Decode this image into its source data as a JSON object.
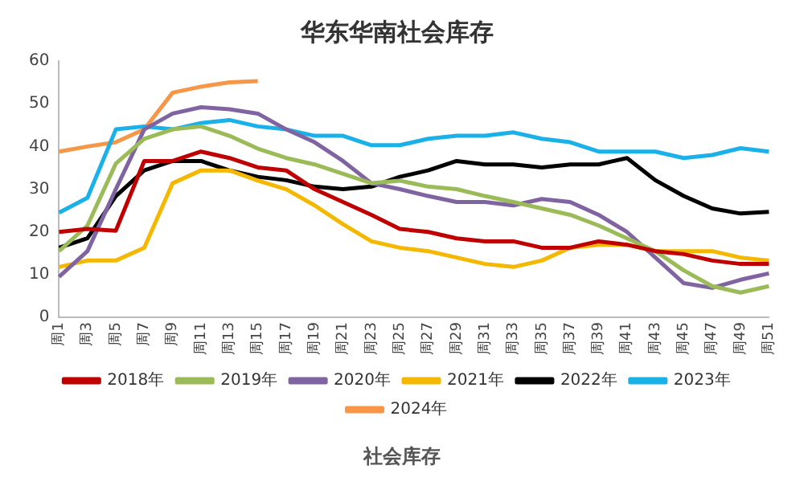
{
  "chart_data": {
    "type": "line",
    "title": "华东华南社会库存",
    "categories": [
      "周1",
      "周3",
      "周5",
      "周7",
      "周9",
      "周11",
      "周13",
      "周15",
      "周17",
      "周19",
      "周21",
      "周23",
      "周25",
      "周27",
      "周29",
      "周31",
      "周33",
      "周35",
      "周37",
      "周39",
      "周41",
      "周43",
      "周45",
      "周47",
      "周49",
      "周51"
    ],
    "series": [
      {
        "name": "2018年",
        "color": "#c00000",
        "values": [
          20,
          20.7,
          20.3,
          36.6,
          36.6,
          38.8,
          37.3,
          35.1,
          34.4,
          30,
          27,
          24,
          20.7,
          20,
          18.5,
          17.8,
          17.8,
          16.3,
          16.3,
          17.8,
          17,
          15.5,
          14.8,
          13.3,
          12.5,
          12.5
        ]
      },
      {
        "name": "2019年",
        "color": "#9bbb59",
        "values": [
          15.5,
          21.5,
          36,
          41.8,
          44,
          44.7,
          42.5,
          39.5,
          37.3,
          35.8,
          33.6,
          31.4,
          32,
          30.6,
          30,
          28.4,
          27,
          25.5,
          24,
          21.5,
          18.5,
          15.5,
          11,
          7.3,
          5.8,
          7.3
        ]
      },
      {
        "name": "2020年",
        "color": "#8064a2",
        "values": [
          9.5,
          15.5,
          30,
          44,
          47.7,
          49.2,
          48.7,
          47.7,
          44,
          41,
          36.6,
          31.4,
          30,
          28.4,
          27,
          27,
          26.2,
          27.7,
          27,
          24,
          20,
          14,
          8,
          6.9,
          8.8,
          10.3
        ]
      },
      {
        "name": "2021年",
        "color": "#f5b800",
        "values": [
          11.8,
          13.3,
          13.3,
          16.3,
          31.4,
          34.4,
          34.4,
          32,
          30,
          26.2,
          21.8,
          17.8,
          16.3,
          15.5,
          14,
          12.5,
          11.8,
          13.3,
          16.3,
          17,
          17,
          15.5,
          15.5,
          15.5,
          14,
          13.3
        ]
      },
      {
        "name": "2022年",
        "color": "#000000",
        "values": [
          16.3,
          18.5,
          28.4,
          34.4,
          36.6,
          36.6,
          34.4,
          32.9,
          32.1,
          30.6,
          30,
          30.6,
          32.9,
          34.4,
          36.6,
          35.8,
          35.8,
          35.1,
          35.8,
          35.8,
          37.3,
          32.1,
          28.4,
          25.5,
          24.3,
          24.7
        ]
      },
      {
        "name": "2023年",
        "color": "#1ab0e8",
        "values": [
          24.5,
          28,
          44,
          44.7,
          44,
          45.5,
          46.2,
          44.7,
          44,
          42.5,
          42.5,
          40.3,
          40.3,
          41.8,
          42.5,
          42.5,
          43.3,
          41.8,
          41,
          38.8,
          38.8,
          38.8,
          37.3,
          38,
          39.6,
          38.8
        ]
      },
      {
        "name": "2024年",
        "color": "#f79646",
        "values": [
          38.8,
          40,
          41,
          44,
          52.6,
          54,
          55,
          55.3,
          null,
          null,
          null,
          null,
          null,
          null,
          null,
          null,
          null,
          null,
          null,
          null,
          null,
          null,
          null,
          null,
          null,
          null
        ]
      }
    ],
    "ylim": [
      0,
      60
    ],
    "yticks": [
      0,
      10,
      20,
      30,
      40,
      50,
      60
    ],
    "grid": false,
    "legend": "bottom",
    "marker": "none",
    "line_style": "solid",
    "annotations": [
      "社会库存"
    ]
  }
}
